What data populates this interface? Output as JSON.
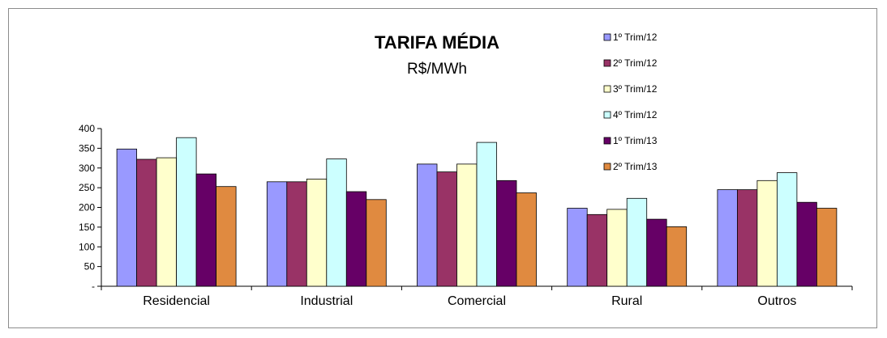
{
  "chart_data": {
    "type": "bar",
    "title": "TARIFA MÉDIA",
    "subtitle": "R$/MWh",
    "categories": [
      "Residencial",
      "Industrial",
      "Comercial",
      "Rural",
      "Outros"
    ],
    "series": [
      {
        "name": "1º Trim/12",
        "color": "#9999ff",
        "values": [
          348,
          265,
          310,
          198,
          245
        ]
      },
      {
        "name": "2º Trim/12",
        "color": "#993366",
        "values": [
          322,
          265,
          290,
          182,
          245
        ]
      },
      {
        "name": "3º Trim/12",
        "color": "#ffffcc",
        "values": [
          326,
          272,
          310,
          195,
          268
        ]
      },
      {
        "name": "4º Trim/12",
        "color": "#ccffff",
        "values": [
          377,
          323,
          365,
          223,
          288
        ]
      },
      {
        "name": "1º Trim/13",
        "color": "#660066",
        "values": [
          285,
          240,
          268,
          170,
          213
        ]
      },
      {
        "name": "2º Trim/13",
        "color": "#e08a40",
        "values": [
          253,
          220,
          237,
          151,
          198
        ]
      }
    ],
    "y_ticks": [
      "-",
      "50",
      "100",
      "150",
      "200",
      "250",
      "300",
      "350",
      "400"
    ],
    "ylim": [
      0,
      400
    ],
    "grid": false,
    "legend_position": "top-right"
  }
}
